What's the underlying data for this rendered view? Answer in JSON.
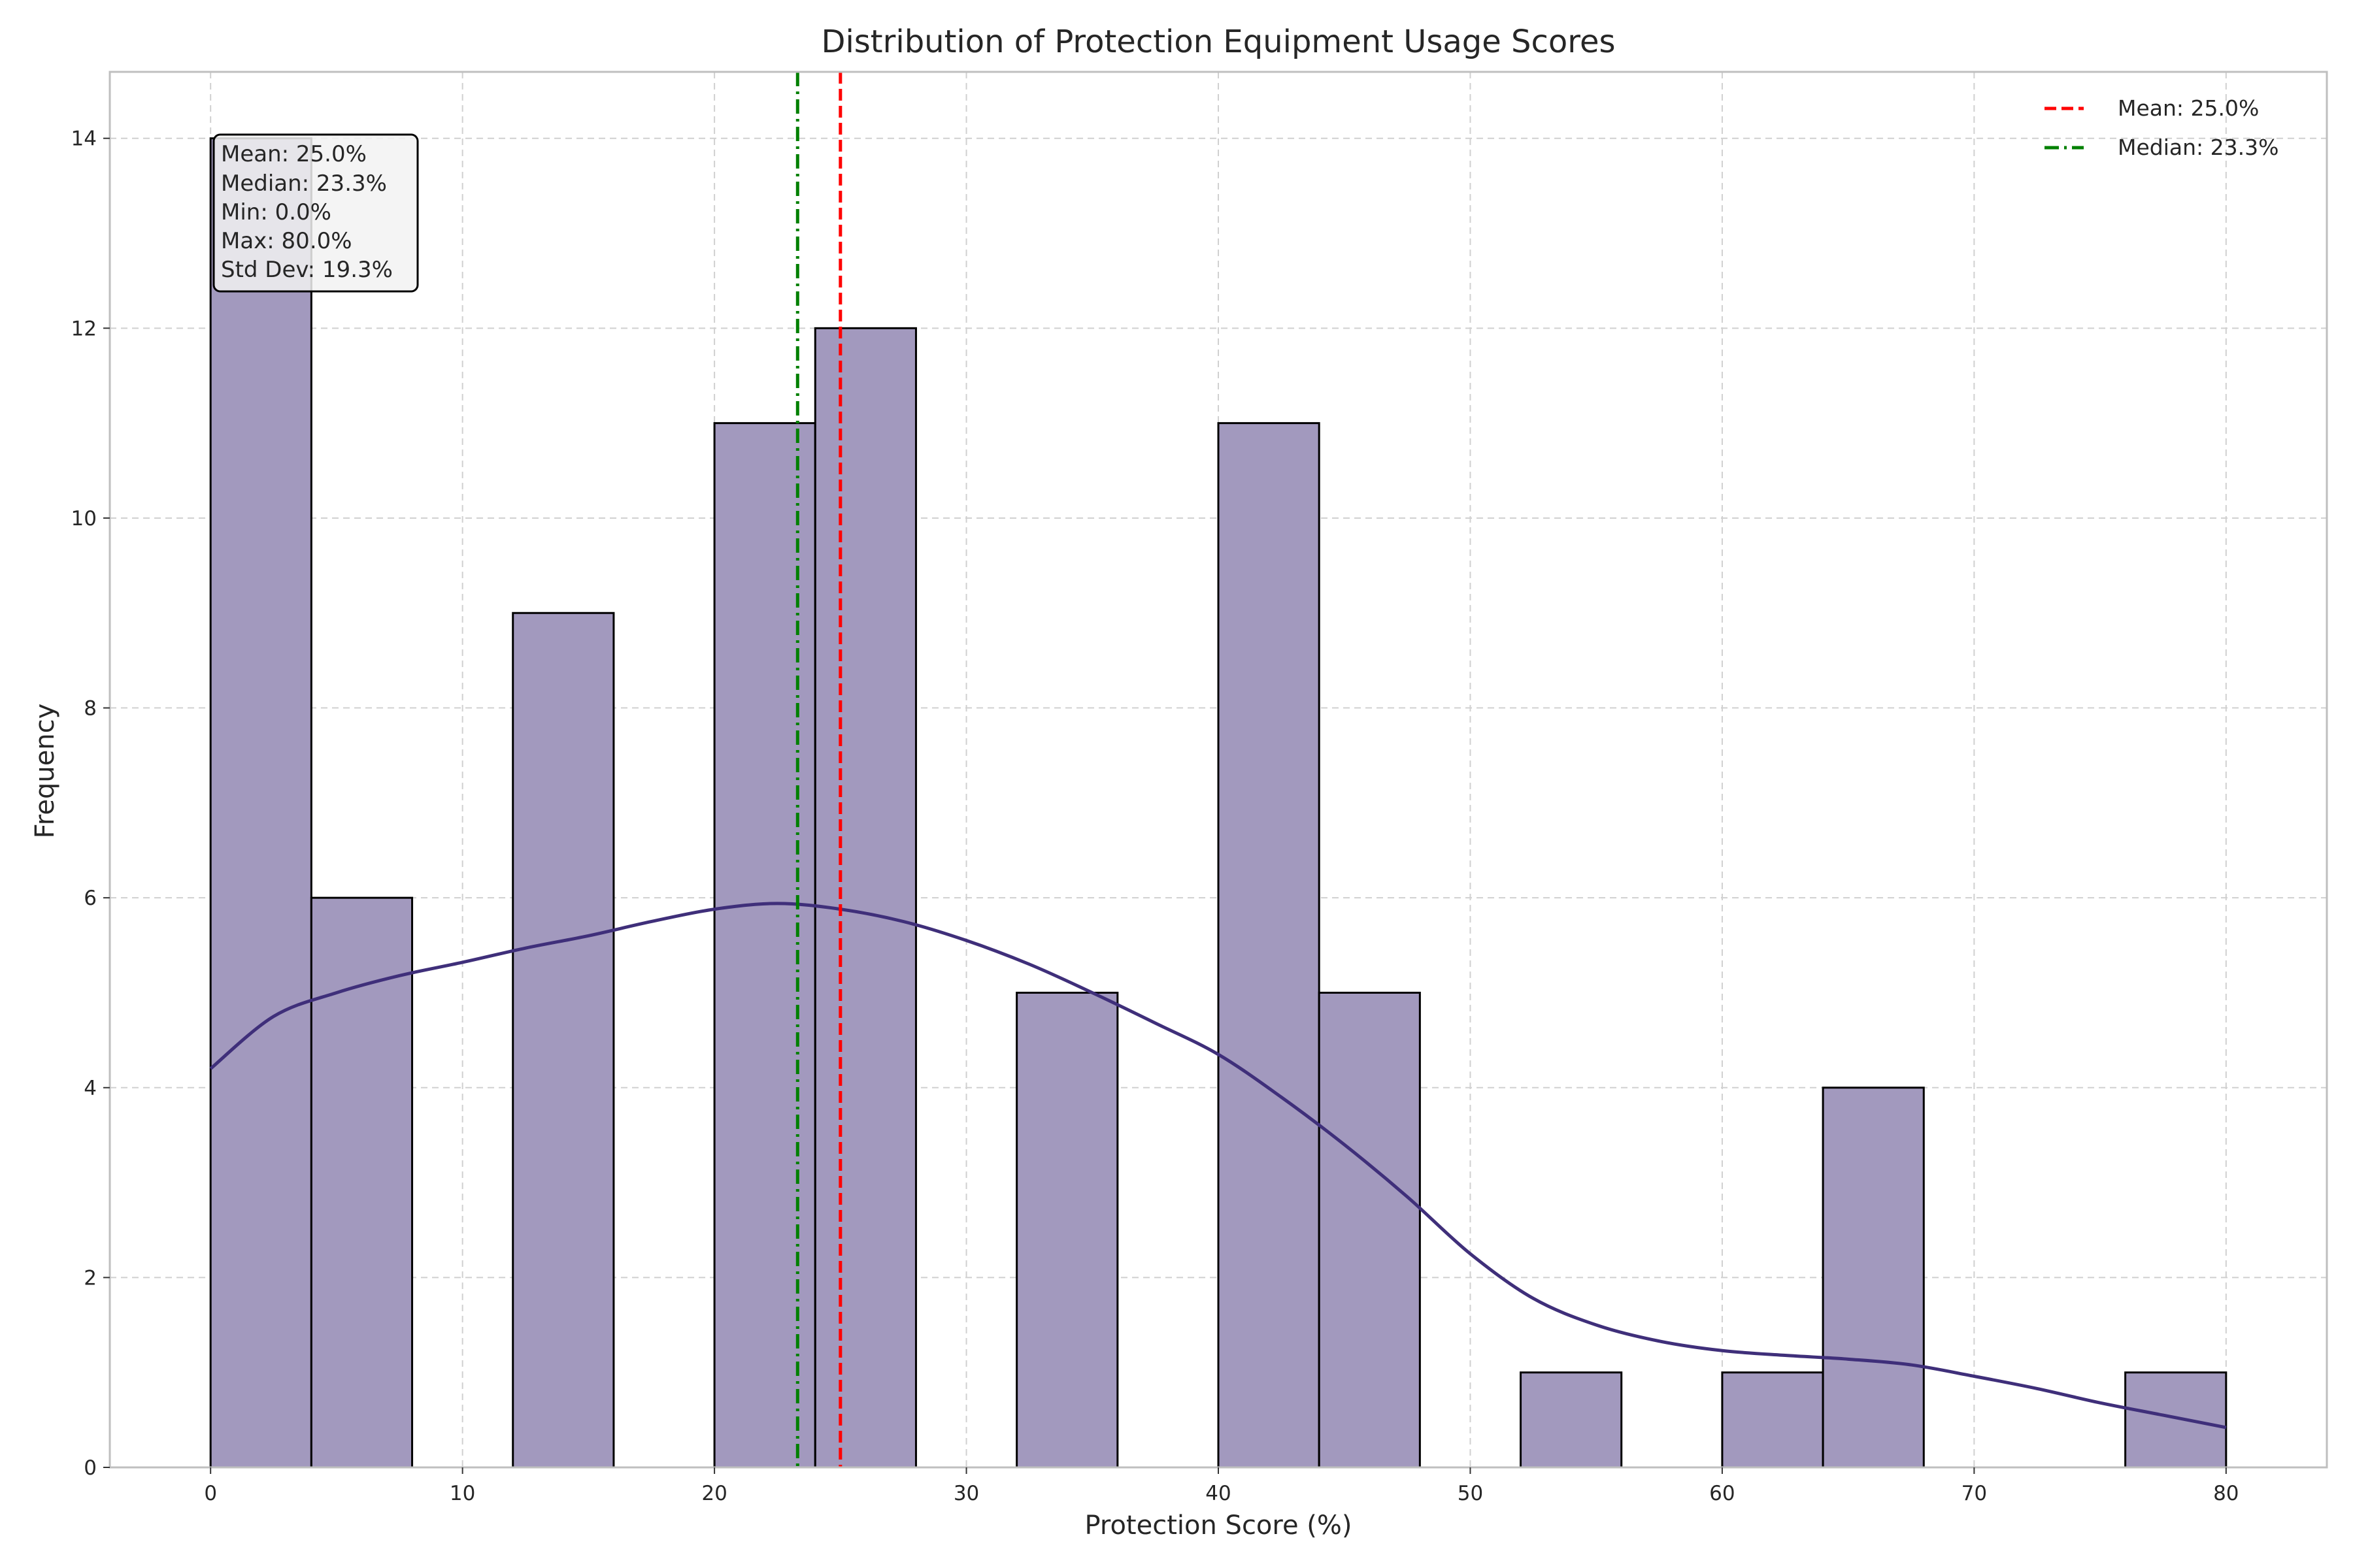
{
  "chart_data": {
    "type": "bar",
    "title": "Distribution of Protection Equipment Usage Scores",
    "xlabel": "Protection Score (%)",
    "ylabel": "Frequency",
    "xlim": [
      -4,
      84
    ],
    "ylim": [
      0,
      14.7
    ],
    "xticks": [
      0,
      10,
      20,
      30,
      40,
      50,
      60,
      70,
      80
    ],
    "yticks": [
      0,
      2,
      4,
      6,
      8,
      10,
      12,
      14
    ],
    "grid": true,
    "bins": [
      {
        "x0": 0,
        "x1": 4,
        "count": 14
      },
      {
        "x0": 4,
        "x1": 8,
        "count": 6
      },
      {
        "x0": 8,
        "x1": 12,
        "count": 0
      },
      {
        "x0": 12,
        "x1": 16,
        "count": 9
      },
      {
        "x0": 16,
        "x1": 20,
        "count": 0
      },
      {
        "x0": 20,
        "x1": 24,
        "count": 11
      },
      {
        "x0": 24,
        "x1": 28,
        "count": 12
      },
      {
        "x0": 28,
        "x1": 32,
        "count": 0
      },
      {
        "x0": 32,
        "x1": 36,
        "count": 5
      },
      {
        "x0": 36,
        "x1": 40,
        "count": 0
      },
      {
        "x0": 40,
        "x1": 44,
        "count": 11
      },
      {
        "x0": 44,
        "x1": 48,
        "count": 5
      },
      {
        "x0": 48,
        "x1": 52,
        "count": 0
      },
      {
        "x0": 52,
        "x1": 56,
        "count": 1
      },
      {
        "x0": 56,
        "x1": 60,
        "count": 0
      },
      {
        "x0": 60,
        "x1": 64,
        "count": 1
      },
      {
        "x0": 64,
        "x1": 68,
        "count": 4
      },
      {
        "x0": 68,
        "x1": 72,
        "count": 0
      },
      {
        "x0": 72,
        "x1": 76,
        "count": 0
      },
      {
        "x0": 76,
        "x1": 80,
        "count": 1
      }
    ],
    "kde": {
      "x": [
        0,
        2.5,
        5,
        7.5,
        10,
        12.5,
        15,
        17.5,
        20,
        22.5,
        25,
        27.5,
        30,
        32.5,
        35,
        37.5,
        40,
        42.5,
        45,
        47.5,
        50,
        52.5,
        55,
        57.5,
        60,
        62.5,
        65,
        67.5,
        70,
        72.5,
        75,
        77.5,
        80
      ],
      "y": [
        4.2,
        4.75,
        5.0,
        5.18,
        5.32,
        5.47,
        5.6,
        5.75,
        5.88,
        5.94,
        5.88,
        5.75,
        5.55,
        5.3,
        5.0,
        4.68,
        4.35,
        3.9,
        3.4,
        2.85,
        2.25,
        1.78,
        1.5,
        1.33,
        1.23,
        1.18,
        1.14,
        1.08,
        0.96,
        0.83,
        0.68,
        0.55,
        0.42
      ]
    },
    "mean": 25.0,
    "median": 23.3,
    "legend": {
      "placement": "top-right",
      "entries": [
        {
          "label": "Mean: 25.0%",
          "color": "#ff0000",
          "style": "dashed"
        },
        {
          "label": "Median: 23.3%",
          "color": "#008000",
          "style": "dashdot"
        }
      ]
    },
    "stats_box": [
      "Mean: 25.0%",
      "Median: 23.3%",
      "Min: 0.0%",
      "Max: 80.0%",
      "Std Dev: 19.3%"
    ],
    "colors": {
      "bar_fill": "#a299be",
      "bar_edge": "#000000",
      "kde_line": "#3f2f7a",
      "mean_line": "#ff0000",
      "median_line": "#008000",
      "grid": "#d0d0d0",
      "axes_edge": "#bfbfbf"
    }
  }
}
